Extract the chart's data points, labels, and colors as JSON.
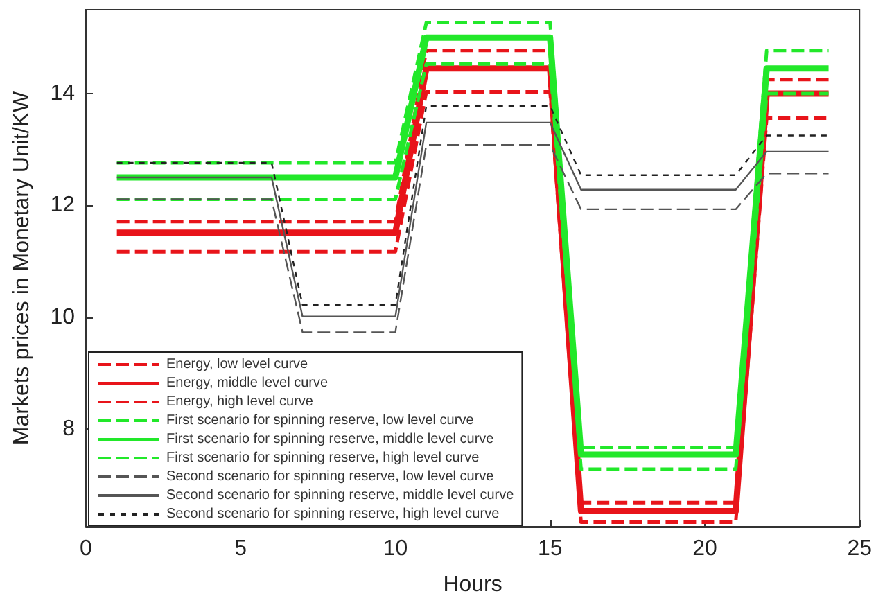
{
  "chart_data": {
    "type": "line",
    "xlabel": "Hours",
    "ylabel": "Markets prices in Monetary Unit/KW",
    "x": [
      1,
      2,
      3,
      4,
      5,
      6,
      7,
      8,
      9,
      10,
      11,
      12,
      13,
      14,
      15,
      16,
      17,
      18,
      19,
      20,
      21,
      22,
      23,
      24
    ],
    "xlim": [
      0,
      25
    ],
    "xticks": [
      0,
      5,
      10,
      15,
      20,
      25
    ],
    "ylim": [
      6.25,
      15.5
    ],
    "yticks": [
      8,
      10,
      12,
      14
    ],
    "grid": false,
    "legend": "bottom left",
    "marker": "none",
    "series": [
      {
        "name": "Energy, low level curve",
        "color": "#e8141a",
        "line_style": "dashed",
        "values": [
          11.17,
          11.17,
          11.17,
          11.17,
          11.17,
          11.17,
          11.17,
          11.17,
          11.17,
          11.17,
          14.03,
          14.03,
          14.03,
          14.03,
          14.03,
          6.33,
          6.33,
          6.33,
          6.33,
          6.33,
          6.33,
          13.56,
          13.56,
          13.56
        ]
      },
      {
        "name": "Energy, middle level curve",
        "color": "#e8141a",
        "line_style": "solid",
        "values": [
          11.51,
          11.51,
          11.51,
          11.51,
          11.51,
          11.51,
          11.51,
          11.51,
          11.51,
          11.51,
          14.45,
          14.45,
          14.45,
          14.45,
          14.45,
          6.53,
          6.53,
          6.53,
          6.53,
          6.53,
          6.53,
          14.0,
          14.0,
          14.0
        ]
      },
      {
        "name": "Energy, high level curve",
        "color": "#e8141a",
        "line_style": "dashed",
        "values": [
          11.71,
          11.71,
          11.71,
          11.71,
          11.71,
          11.71,
          11.71,
          11.71,
          11.71,
          11.71,
          14.77,
          14.77,
          14.77,
          14.77,
          14.77,
          6.68,
          6.68,
          6.68,
          6.68,
          6.68,
          6.68,
          14.25,
          14.25,
          14.25
        ]
      },
      {
        "name": "First scenario for spinning reserve, low level curve",
        "color": "#22e82a",
        "line_style": "dashed",
        "values": [
          12.11,
          12.11,
          12.11,
          12.11,
          12.11,
          12.11,
          12.11,
          12.11,
          12.11,
          12.11,
          14.53,
          14.53,
          14.53,
          14.53,
          14.53,
          7.28,
          7.28,
          7.28,
          7.28,
          7.28,
          7.28,
          14.0,
          14.0,
          14.0
        ]
      },
      {
        "name": "First scenario for spinning reserve, middle level curve",
        "color": "#22e82a",
        "line_style": "solid",
        "values": [
          12.5,
          12.5,
          12.5,
          12.5,
          12.5,
          12.5,
          12.5,
          12.5,
          12.5,
          12.5,
          15.0,
          15.0,
          15.0,
          15.0,
          15.0,
          7.54,
          7.54,
          7.54,
          7.54,
          7.54,
          7.54,
          14.45,
          14.45,
          14.45
        ]
      },
      {
        "name": "First scenario for spinning reserve, high level curve",
        "color": "#22e82a",
        "line_style": "dashed",
        "values": [
          12.76,
          12.76,
          12.76,
          12.76,
          12.76,
          12.76,
          12.76,
          12.76,
          12.76,
          12.76,
          15.27,
          15.27,
          15.27,
          15.27,
          15.27,
          7.67,
          7.67,
          7.67,
          7.67,
          7.67,
          7.67,
          14.77,
          14.77,
          14.77
        ]
      },
      {
        "name": "Second scenario for spinning reserve, low level curve",
        "color": "#555555",
        "line_style": "dashed",
        "values": [
          12.11,
          12.11,
          12.11,
          12.11,
          12.11,
          12.11,
          9.73,
          9.73,
          9.73,
          9.73,
          13.08,
          13.08,
          13.08,
          13.08,
          13.08,
          11.93,
          11.93,
          11.93,
          11.93,
          11.93,
          11.93,
          12.57,
          12.57,
          12.57
        ]
      },
      {
        "name": "Second scenario for spinning reserve, middle level curve",
        "color": "#555555",
        "line_style": "solid",
        "values": [
          12.5,
          12.5,
          12.5,
          12.5,
          12.5,
          12.5,
          10.01,
          10.01,
          10.01,
          10.01,
          13.48,
          13.48,
          13.48,
          13.48,
          13.48,
          12.28,
          12.28,
          12.28,
          12.28,
          12.28,
          12.28,
          12.96,
          12.96,
          12.96
        ]
      },
      {
        "name": "Second scenario for spinning reserve, high level curve",
        "color": "#222222",
        "line_style": "dotted",
        "values": [
          12.76,
          12.76,
          12.76,
          12.76,
          12.76,
          12.76,
          10.22,
          10.22,
          10.22,
          10.22,
          13.78,
          13.78,
          13.78,
          13.78,
          13.78,
          12.54,
          12.54,
          12.54,
          12.54,
          12.54,
          12.54,
          13.25,
          13.25,
          13.25
        ]
      }
    ]
  }
}
